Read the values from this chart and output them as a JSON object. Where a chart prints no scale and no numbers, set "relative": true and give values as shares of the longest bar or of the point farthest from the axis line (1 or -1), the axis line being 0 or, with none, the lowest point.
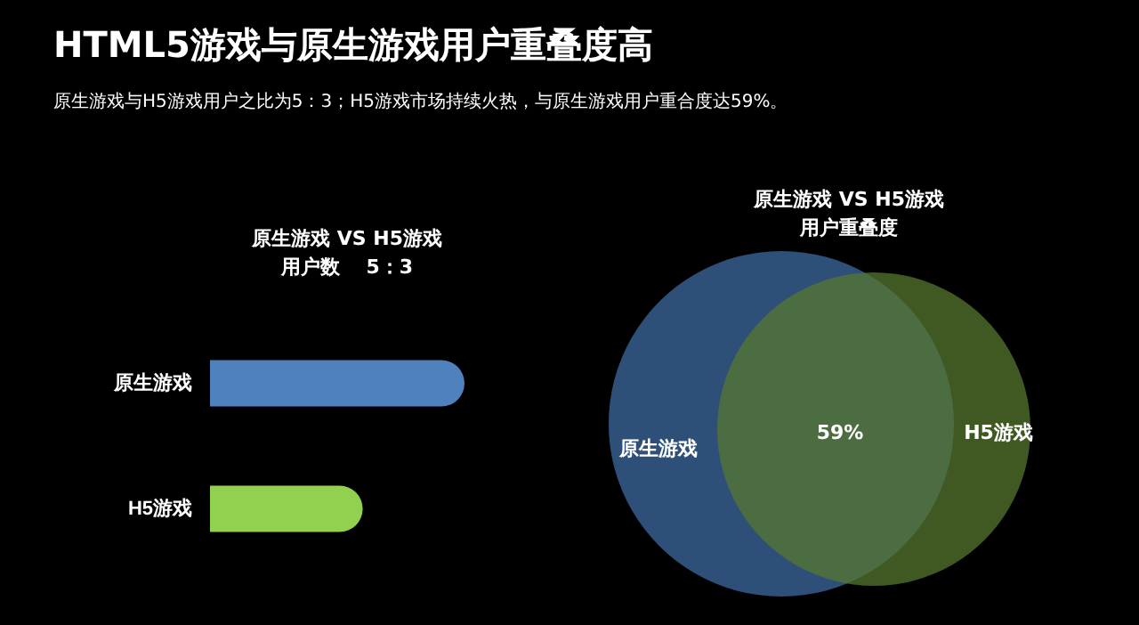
{
  "chart_data": [
    {
      "type": "other",
      "title": "HTML5游戏与原生游戏用户重叠度高",
      "subtitle": "原生游戏与H5游戏用户之比为5：3；H5游戏市场持续火热，与原生游戏用户重合度达59%。"
    },
    {
      "type": "bar",
      "orientation": "horizontal",
      "relative": true,
      "title": "原生游戏 VS H5游戏",
      "subtitle": "用户数　 5：3",
      "categories": [
        "原生游戏",
        "H5游戏"
      ],
      "values": [
        1,
        0.6
      ],
      "colors": [
        "#4f81bd",
        "#92d050"
      ]
    },
    {
      "type": "other",
      "title": "原生游戏 VS H5游戏",
      "subtitle": "用户重叠度",
      "categories": [
        "原生游戏",
        "H5游戏"
      ],
      "colors": [
        "#2e4f78",
        "#55772f"
      ],
      "annotations": [
        "59%"
      ]
    }
  ]
}
